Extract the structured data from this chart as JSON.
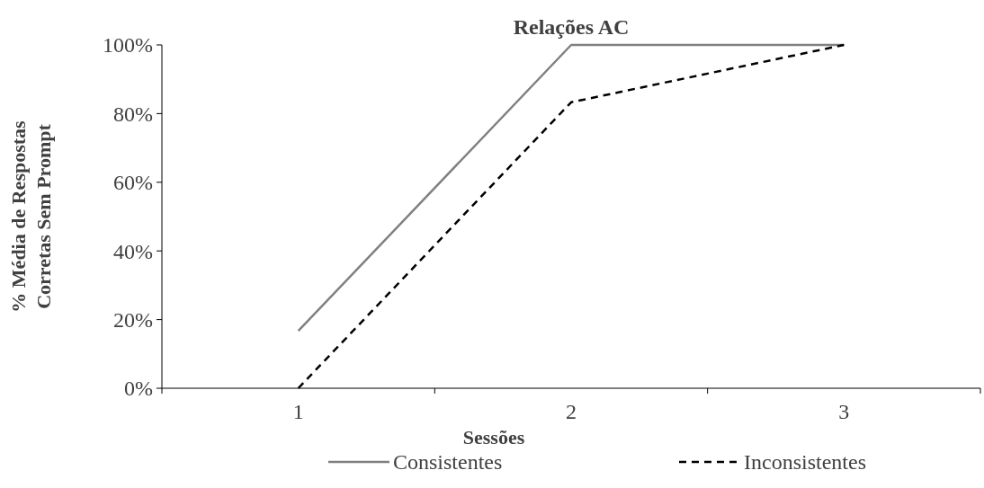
{
  "chart_data": {
    "type": "line",
    "title": "Relações AC",
    "xlabel": "Sessões",
    "ylabel": "% Média de Respostas\nCorretas Sem Prompt",
    "categories": [
      "1",
      "2",
      "3"
    ],
    "series": [
      {
        "name": "Consistentes",
        "color": "#808080",
        "line_style": "solid",
        "values": [
          16.7,
          100,
          100
        ]
      },
      {
        "name": "Inconsistentes",
        "color": "#000000",
        "line_style": "dashed",
        "values": [
          0,
          83.3,
          100
        ]
      }
    ],
    "ylim": [
      0,
      100
    ],
    "yticks": [
      {
        "value": 0,
        "label": "0%"
      },
      {
        "value": 20,
        "label": "20%"
      },
      {
        "value": 40,
        "label": "40%"
      },
      {
        "value": 60,
        "label": "60%"
      },
      {
        "value": 80,
        "label": "80%"
      },
      {
        "value": 100,
        "label": "100%"
      }
    ],
    "grid": false,
    "legend": "bottom"
  }
}
